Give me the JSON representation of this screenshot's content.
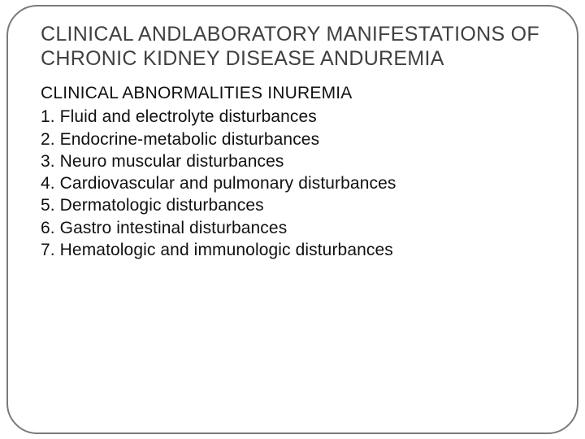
{
  "slide": {
    "title": "CLINICAL ANDLABORATORY MANIFESTATIONS OF  CHRONIC KIDNEY DISEASE  ANDUREMIA",
    "subtitle": "CLINICAL ABNORMALITIES INUREMIA",
    "items": [
      "1. Fluid and electrolyte disturbances",
      "2. Endocrine-metabolic disturbances",
      "3. Neuro muscular disturbances",
      "4. Cardiovascular and pulmonary disturbances",
      "5. Dermatologic disturbances",
      "6. Gastro intestinal disturbances",
      "7. Hematologic and immunologic disturbances"
    ]
  },
  "style": {
    "background_color": "#ffffff",
    "frame_border_color": "#7a7a7a",
    "frame_border_radius": 38,
    "title_color": "#404040",
    "title_fontsize": 25,
    "body_color": "#111111",
    "body_fontsize": 21,
    "font_family": "Arial"
  }
}
